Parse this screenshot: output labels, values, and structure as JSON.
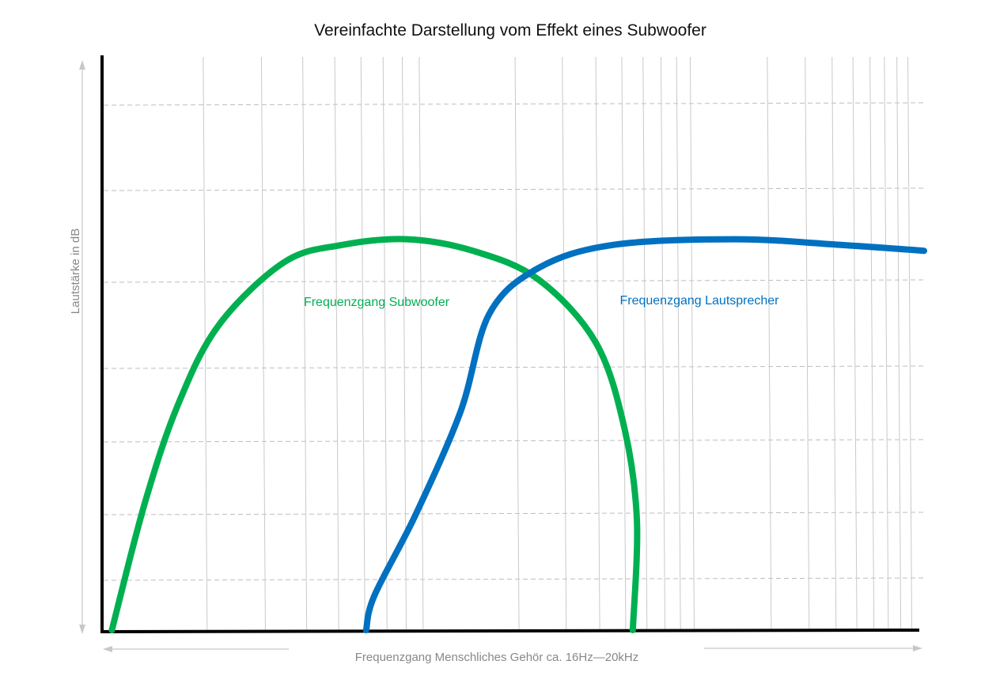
{
  "chart_data": {
    "type": "line",
    "title": "Vereinfachte Darstellung vom Effekt eines Subwoofer",
    "xlabel": "Frequenzgang Menschliches Gehör ca. 16Hz—20kHz",
    "ylabel": "Lautstärke in dB",
    "x_scale": "log",
    "grid": {
      "vertical": "solid-log-decades",
      "horizontal": "dashed"
    },
    "tick_labels": "none",
    "series": [
      {
        "name": "Frequenzgang Subwoofer",
        "color": "#00B050",
        "points": [
          [
            0.01,
            0.0
          ],
          [
            0.05,
            0.22
          ],
          [
            0.09,
            0.39
          ],
          [
            0.14,
            0.53
          ],
          [
            0.22,
            0.64
          ],
          [
            0.29,
            0.67
          ],
          [
            0.37,
            0.68
          ],
          [
            0.45,
            0.66
          ],
          [
            0.53,
            0.61
          ],
          [
            0.6,
            0.5
          ],
          [
            0.635,
            0.35
          ],
          [
            0.65,
            0.19
          ],
          [
            0.645,
            0.0
          ]
        ]
      },
      {
        "name": "Frequenzgang Lautsprecher",
        "color": "#0070C0",
        "points": [
          [
            0.32,
            0.0
          ],
          [
            0.33,
            0.06
          ],
          [
            0.38,
            0.2
          ],
          [
            0.435,
            0.38
          ],
          [
            0.47,
            0.55
          ],
          [
            0.53,
            0.63
          ],
          [
            0.62,
            0.67
          ],
          [
            0.77,
            0.68
          ],
          [
            0.9,
            0.67
          ],
          [
            1.0,
            0.66
          ]
        ]
      }
    ]
  }
}
